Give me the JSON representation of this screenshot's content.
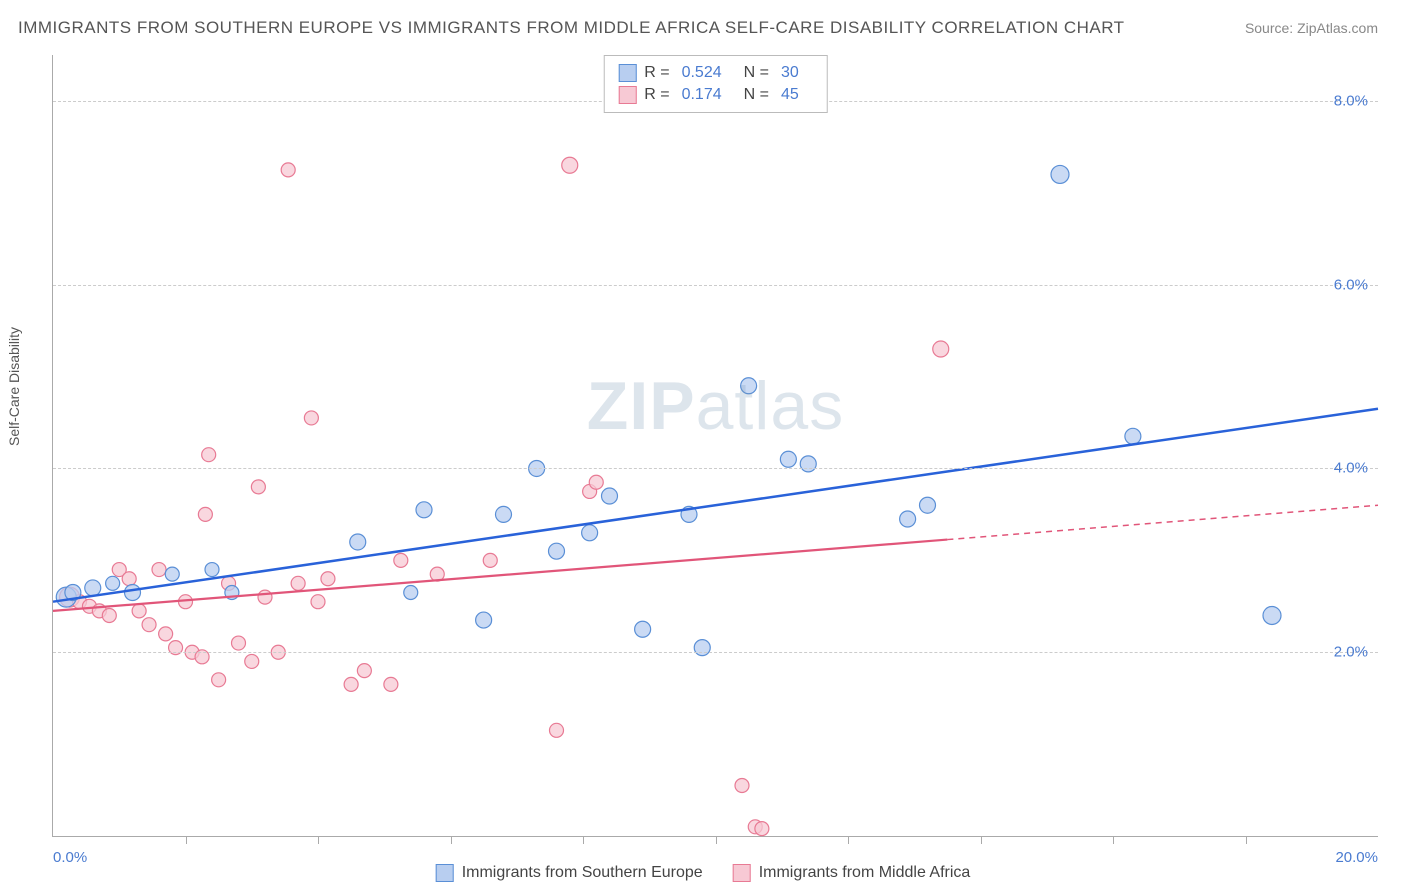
{
  "title": "IMMIGRANTS FROM SOUTHERN EUROPE VS IMMIGRANTS FROM MIDDLE AFRICA SELF-CARE DISABILITY CORRELATION CHART",
  "source_label": "Source: ZipAtlas.com",
  "ylabel": "Self-Care Disability",
  "watermark_bold": "ZIP",
  "watermark_rest": "atlas",
  "chart": {
    "type": "scatter",
    "xlim": [
      0,
      20
    ],
    "ylim": [
      0,
      8.5
    ],
    "x_ticks": [
      2,
      4,
      6,
      8,
      10,
      12,
      14,
      16,
      18
    ],
    "x_tick_labels_shown": {
      "0": "0.0%",
      "20": "20.0%"
    },
    "y_ticks": [
      2,
      4,
      6,
      8
    ],
    "y_tick_labels": {
      "2": "2.0%",
      "4": "4.0%",
      "6": "6.0%",
      "8": "8.0%"
    },
    "background_color": "#ffffff",
    "grid_color": "#cccccc",
    "axis_color": "#aaaaaa",
    "tick_label_color": "#4a7bd0"
  },
  "series": [
    {
      "name": "Immigrants from Southern Europe",
      "marker_fill": "#b8cef0",
      "marker_stroke": "#5a8fd6",
      "line_color": "#2962d9",
      "r_label": "R =",
      "r_value": "0.524",
      "n_label": "N =",
      "n_value": "30",
      "trend": {
        "x1": 0,
        "y1": 2.55,
        "x2": 20,
        "y2": 4.65,
        "dashed_from": null
      },
      "points": [
        {
          "x": 0.2,
          "y": 2.6,
          "r": 10
        },
        {
          "x": 0.3,
          "y": 2.65,
          "r": 8
        },
        {
          "x": 0.6,
          "y": 2.7,
          "r": 8
        },
        {
          "x": 0.9,
          "y": 2.75,
          "r": 7
        },
        {
          "x": 1.2,
          "y": 2.65,
          "r": 8
        },
        {
          "x": 1.8,
          "y": 2.85,
          "r": 7
        },
        {
          "x": 2.4,
          "y": 2.9,
          "r": 7
        },
        {
          "x": 2.7,
          "y": 2.65,
          "r": 7
        },
        {
          "x": 4.6,
          "y": 3.2,
          "r": 8
        },
        {
          "x": 5.4,
          "y": 2.65,
          "r": 7
        },
        {
          "x": 5.6,
          "y": 3.55,
          "r": 8
        },
        {
          "x": 6.5,
          "y": 2.35,
          "r": 8
        },
        {
          "x": 6.8,
          "y": 3.5,
          "r": 8
        },
        {
          "x": 7.3,
          "y": 4.0,
          "r": 8
        },
        {
          "x": 7.6,
          "y": 3.1,
          "r": 8
        },
        {
          "x": 8.1,
          "y": 3.3,
          "r": 8
        },
        {
          "x": 8.4,
          "y": 3.7,
          "r": 8
        },
        {
          "x": 8.9,
          "y": 2.25,
          "r": 8
        },
        {
          "x": 9.6,
          "y": 3.5,
          "r": 8
        },
        {
          "x": 9.8,
          "y": 2.05,
          "r": 8
        },
        {
          "x": 10.5,
          "y": 4.9,
          "r": 8
        },
        {
          "x": 11.1,
          "y": 4.1,
          "r": 8
        },
        {
          "x": 11.4,
          "y": 4.05,
          "r": 8
        },
        {
          "x": 12.9,
          "y": 3.45,
          "r": 8
        },
        {
          "x": 13.2,
          "y": 3.6,
          "r": 8
        },
        {
          "x": 15.2,
          "y": 7.2,
          "r": 9
        },
        {
          "x": 16.3,
          "y": 4.35,
          "r": 8
        },
        {
          "x": 18.4,
          "y": 2.4,
          "r": 9
        }
      ]
    },
    {
      "name": "Immigrants from Middle Africa",
      "marker_fill": "#f7c9d4",
      "marker_stroke": "#e87a94",
      "line_color": "#e15579",
      "r_label": "R =",
      "r_value": "0.174",
      "n_label": "N =",
      "n_value": "45",
      "trend": {
        "x1": 0,
        "y1": 2.45,
        "x2": 20,
        "y2": 3.6,
        "dashed_from": 13.5
      },
      "points": [
        {
          "x": 0.25,
          "y": 2.6,
          "r": 10
        },
        {
          "x": 0.4,
          "y": 2.55,
          "r": 7
        },
        {
          "x": 0.55,
          "y": 2.5,
          "r": 7
        },
        {
          "x": 0.7,
          "y": 2.45,
          "r": 7
        },
        {
          "x": 0.85,
          "y": 2.4,
          "r": 7
        },
        {
          "x": 1.0,
          "y": 2.9,
          "r": 7
        },
        {
          "x": 1.15,
          "y": 2.8,
          "r": 7
        },
        {
          "x": 1.3,
          "y": 2.45,
          "r": 7
        },
        {
          "x": 1.45,
          "y": 2.3,
          "r": 7
        },
        {
          "x": 1.6,
          "y": 2.9,
          "r": 7
        },
        {
          "x": 1.7,
          "y": 2.2,
          "r": 7
        },
        {
          "x": 1.85,
          "y": 2.05,
          "r": 7
        },
        {
          "x": 2.0,
          "y": 2.55,
          "r": 7
        },
        {
          "x": 2.1,
          "y": 2.0,
          "r": 7
        },
        {
          "x": 2.25,
          "y": 1.95,
          "r": 7
        },
        {
          "x": 2.3,
          "y": 3.5,
          "r": 7
        },
        {
          "x": 2.35,
          "y": 4.15,
          "r": 7
        },
        {
          "x": 2.5,
          "y": 1.7,
          "r": 7
        },
        {
          "x": 2.65,
          "y": 2.75,
          "r": 7
        },
        {
          "x": 2.8,
          "y": 2.1,
          "r": 7
        },
        {
          "x": 3.0,
          "y": 1.9,
          "r": 7
        },
        {
          "x": 3.1,
          "y": 3.8,
          "r": 7
        },
        {
          "x": 3.2,
          "y": 2.6,
          "r": 7
        },
        {
          "x": 3.4,
          "y": 2.0,
          "r": 7
        },
        {
          "x": 3.55,
          "y": 7.25,
          "r": 7
        },
        {
          "x": 3.7,
          "y": 2.75,
          "r": 7
        },
        {
          "x": 3.9,
          "y": 4.55,
          "r": 7
        },
        {
          "x": 4.0,
          "y": 2.55,
          "r": 7
        },
        {
          "x": 4.15,
          "y": 2.8,
          "r": 7
        },
        {
          "x": 4.5,
          "y": 1.65,
          "r": 7
        },
        {
          "x": 4.7,
          "y": 1.8,
          "r": 7
        },
        {
          "x": 5.1,
          "y": 1.65,
          "r": 7
        },
        {
          "x": 5.25,
          "y": 3.0,
          "r": 7
        },
        {
          "x": 5.8,
          "y": 2.85,
          "r": 7
        },
        {
          "x": 6.6,
          "y": 3.0,
          "r": 7
        },
        {
          "x": 7.6,
          "y": 1.15,
          "r": 7
        },
        {
          "x": 7.8,
          "y": 7.3,
          "r": 8
        },
        {
          "x": 8.1,
          "y": 3.75,
          "r": 7
        },
        {
          "x": 8.2,
          "y": 3.85,
          "r": 7
        },
        {
          "x": 10.4,
          "y": 0.55,
          "r": 7
        },
        {
          "x": 10.6,
          "y": 0.1,
          "r": 7
        },
        {
          "x": 10.7,
          "y": 0.08,
          "r": 7
        },
        {
          "x": 13.4,
          "y": 5.3,
          "r": 8
        }
      ]
    }
  ],
  "bottom_legend": [
    {
      "label": "Immigrants from Southern Europe",
      "fill": "#b8cef0",
      "stroke": "#5a8fd6"
    },
    {
      "label": "Immigrants from Middle Africa",
      "fill": "#f7c9d4",
      "stroke": "#e87a94"
    }
  ]
}
